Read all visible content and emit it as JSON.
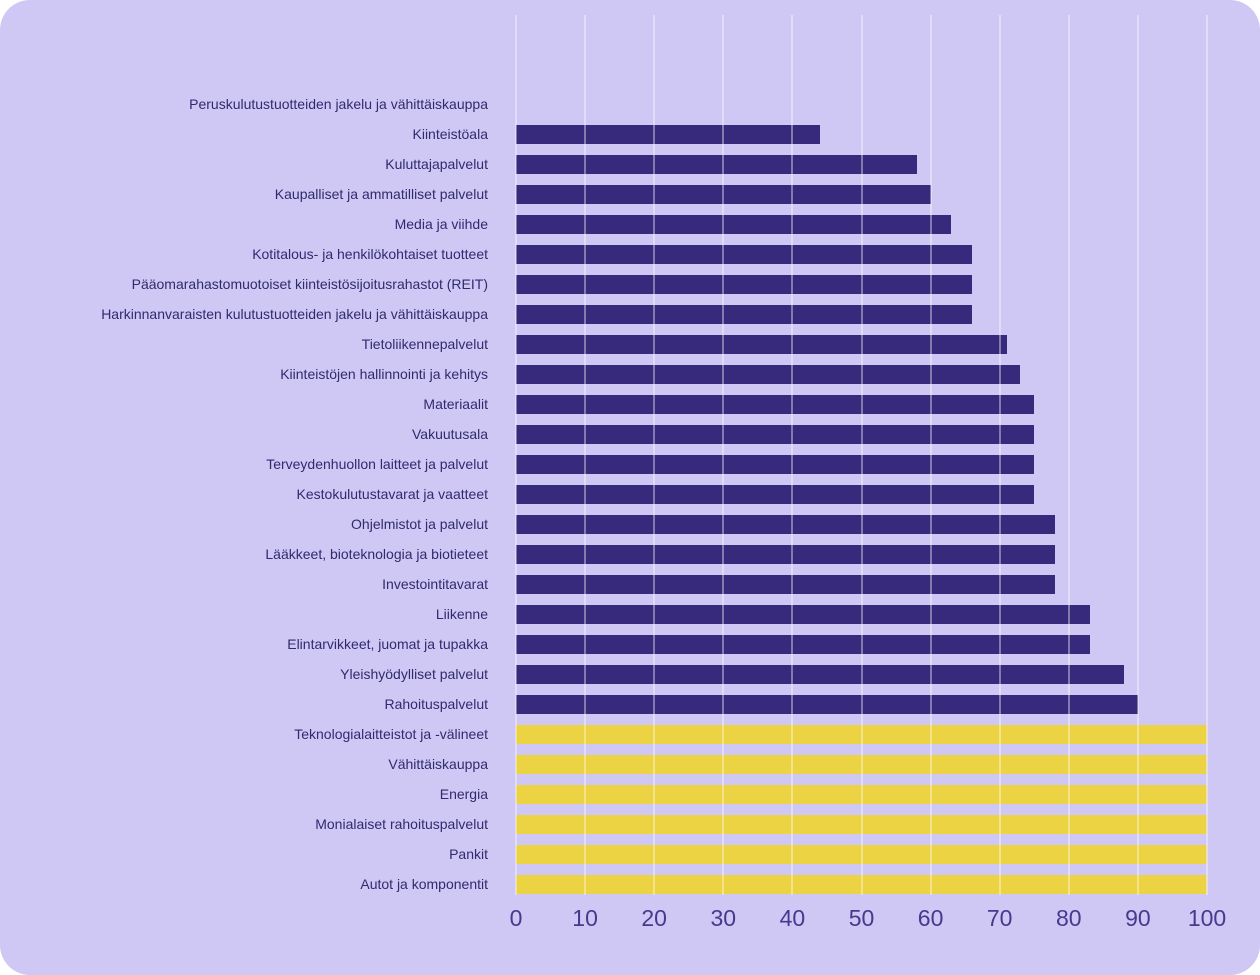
{
  "chart_data": {
    "type": "bar",
    "orientation": "horizontal",
    "title": "",
    "xlabel": "",
    "ylabel": "",
    "xlim": [
      0,
      100
    ],
    "x_ticks": [
      0,
      10,
      20,
      30,
      40,
      50,
      60,
      70,
      80,
      90,
      100
    ],
    "grid": true,
    "legend": null,
    "categories": [
      "Peruskulutustuotteiden jakelu ja vähittäiskauppa",
      "Kiinteistöala",
      "Kuluttajapalvelut",
      "Kaupalliset ja ammatilliset palvelut",
      "Media ja viihde",
      "Kotitalous- ja henkilökohtaiset tuotteet",
      "Pääomarahastomuotoiset kiinteistösijoitusrahastot (REIT)",
      "Harkinnanvaraisten kulutustuotteiden jakelu ja vähittäiskauppa",
      "Tietoliikennepalvelut",
      "Kiinteistöjen hallinnointi ja kehitys",
      "Materiaalit",
      "Vakuutusala",
      "Terveydenhuollon laitteet ja palvelut",
      "Kestokulutustavarat ja vaatteet",
      "Ohjelmistot ja palvelut",
      "Lääkkeet, bioteknologia ja biotieteet",
      "Investointitavarat",
      "Liikenne",
      "Elintarvikkeet, juomat ja tupakka",
      "Yleishyödylliset palvelut",
      "Rahoituspalvelut",
      "Teknologialaitteistot ja -välineet",
      "Vähittäiskauppa",
      "Energia",
      "Monialaiset rahoituspalvelut",
      "Pankit",
      "Autot ja komponentit"
    ],
    "values": [
      0,
      44,
      58,
      60,
      63,
      66,
      66,
      66,
      71,
      73,
      75,
      75,
      75,
      75,
      78,
      78,
      78,
      83,
      83,
      88,
      90,
      100,
      100,
      100,
      100,
      100,
      100
    ],
    "bar_color_keys": [
      "purple",
      "purple",
      "purple",
      "purple",
      "purple",
      "purple",
      "purple",
      "purple",
      "purple",
      "purple",
      "purple",
      "purple",
      "purple",
      "purple",
      "purple",
      "purple",
      "purple",
      "purple",
      "purple",
      "purple",
      "purple",
      "yellow",
      "yellow",
      "yellow",
      "yellow",
      "yellow",
      "yellow"
    ],
    "palette": {
      "purple": "#37297c",
      "yellow": "#ecd343"
    }
  },
  "colors": {
    "page_background": "#ffffff",
    "panel_background": "#cfc8f4",
    "gridline": "rgba(255,255,255,0.38)",
    "category_label_text": "#302a6f",
    "axis_tick_text": "#46398e"
  }
}
